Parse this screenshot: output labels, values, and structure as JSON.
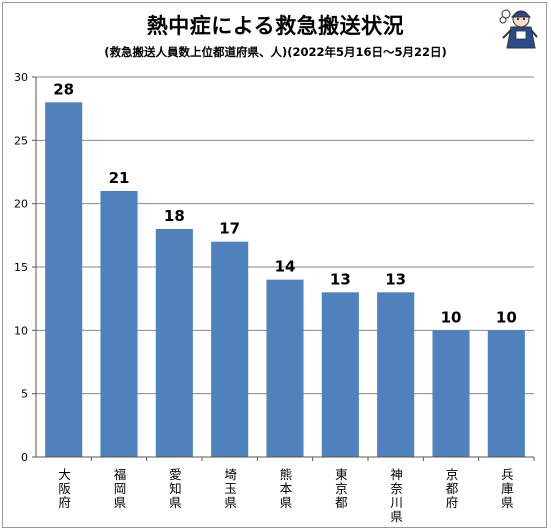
{
  "title": "熱中症による救急搬送状況",
  "subtitle": "(救急搬送人員数上位都道府県、人)(2022年5月16日～5月22日)",
  "chart_data": {
    "type": "bar",
    "categories": [
      "大阪府",
      "福岡県",
      "愛知県",
      "埼玉県",
      "熊本県",
      "東京都",
      "神奈川県",
      "京都府",
      "兵庫県"
    ],
    "values": [
      28,
      21,
      18,
      17,
      14,
      13,
      13,
      10,
      10
    ],
    "ylim": [
      0,
      30
    ],
    "yticks": [
      0,
      5,
      10,
      15,
      20,
      25,
      30
    ],
    "grid": true,
    "bar_color": "#4f81bd",
    "grid_color": "#868686",
    "data_labels": true
  }
}
